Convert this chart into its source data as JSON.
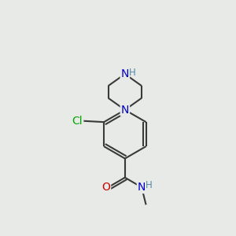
{
  "background_color": "#e8eae8",
  "bond_color": "#3a3a3a",
  "bond_width": 1.5,
  "atom_colors": {
    "C": "#3a3a3a",
    "N": "#0000cc",
    "O": "#cc0000",
    "Cl": "#00aa00",
    "H": "#5588aa"
  },
  "font_size": 10,
  "fig_width": 3.0,
  "fig_height": 3.0,
  "dpi": 100,
  "xlim": [
    0,
    10
  ],
  "ylim": [
    0,
    10
  ]
}
